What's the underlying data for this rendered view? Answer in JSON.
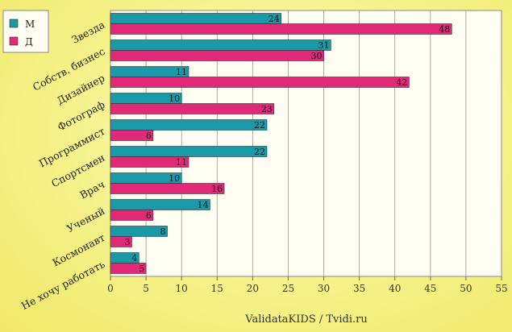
{
  "chart_data": {
    "type": "bar",
    "orientation": "horizontal",
    "categories": [
      "Звезда",
      "Собств. бизнес",
      "Дизайнер",
      "Фотограф",
      "Программист",
      "Спортсмен",
      "Врач",
      "Ученый",
      "Космонавт",
      "Не хочу работать"
    ],
    "series": [
      {
        "name": "М",
        "color": "#1a9aa8",
        "values": [
          24,
          31,
          11,
          10,
          22,
          22,
          10,
          14,
          8,
          4
        ]
      },
      {
        "name": "Д",
        "color": "#e02a78",
        "values": [
          48,
          30,
          42,
          23,
          6,
          11,
          16,
          6,
          3,
          5
        ]
      }
    ],
    "xlim": [
      0,
      55
    ],
    "xticks": [
      0,
      5,
      10,
      15,
      20,
      25,
      30,
      35,
      40,
      45,
      50,
      55
    ],
    "grid": true,
    "legend_position": "top-left"
  },
  "footer_text": "ValidataKIDS / Tvidi.ru"
}
